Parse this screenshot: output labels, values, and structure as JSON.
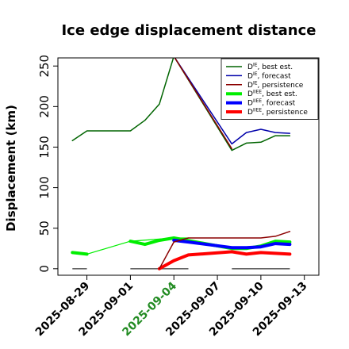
{
  "chart_data": {
    "type": "line",
    "title": "Ice edge displacement distance",
    "xlabel": "",
    "ylabel": "Displacement (km)",
    "ylim": [
      -8,
      260
    ],
    "xlim": [
      "2025-08-27",
      "2025-09-14"
    ],
    "x_ticks": [
      "2025-08-29",
      "2025-09-01",
      "2025-09-04",
      "2025-09-07",
      "2025-09-10",
      "2025-09-13"
    ],
    "highlight_tick": "2025-09-04",
    "y_ticks": [
      0,
      50,
      100,
      150,
      200,
      250
    ],
    "grid": false,
    "legend_position": "top-right",
    "series": [
      {
        "name": "D^IE, best est.",
        "name_base": "D",
        "name_sup": "IE",
        "name_suffix": ", best est.",
        "color": "#006400",
        "width": 1.5,
        "points": [
          [
            "2025-08-28",
            158
          ],
          [
            "2025-08-29",
            170
          ],
          [
            "2025-09-01",
            170
          ],
          [
            "2025-09-02",
            183
          ],
          [
            "2025-09-03",
            203
          ],
          [
            "2025-09-04",
            262
          ],
          [
            "2025-09-08",
            146
          ],
          [
            "2025-09-09",
            155
          ],
          [
            "2025-09-10",
            156
          ],
          [
            "2025-09-11",
            164
          ],
          [
            "2025-09-12",
            164
          ]
        ]
      },
      {
        "name": "D^IE, forecast",
        "name_base": "D",
        "name_sup": "IE",
        "name_suffix": ", forecast",
        "color": "#0000aa",
        "width": 1.5,
        "points": [
          [
            "2025-09-04",
            262
          ],
          [
            "2025-09-08",
            154
          ],
          [
            "2025-09-09",
            168
          ],
          [
            "2025-09-10",
            172
          ],
          [
            "2025-09-11",
            168
          ],
          [
            "2025-09-12",
            167
          ]
        ]
      },
      {
        "name": "D^IE, persistence",
        "name_base": "D",
        "name_sup": "IE",
        "name_suffix": ", persistence",
        "color": "#8b0000",
        "width": 1.5,
        "points": [
          [
            "2025-09-04",
            262
          ],
          [
            "2025-09-08",
            148
          ]
        ]
      },
      {
        "name": "D^IIEE, best est.",
        "name_base": "D",
        "name_sup": "IIEE",
        "name_suffix": ", best est.",
        "color": "#00ee00",
        "width": 4,
        "points": [
          [
            "2025-08-28",
            20
          ],
          [
            "2025-08-29",
            18
          ]
        ]
      },
      {
        "name": "D^IIEE, best est. (thin)",
        "color": "#00ee00",
        "width": 1.2,
        "legend": false,
        "points": [
          [
            "2025-08-29",
            18
          ],
          [
            "2025-09-01",
            34
          ],
          [
            "2025-09-04",
            38
          ],
          [
            "2025-09-05",
            38
          ]
        ]
      },
      {
        "name": "D^IIEE, best est. (tail)",
        "color": "#00ee00",
        "width": 4,
        "legend": false,
        "points": [
          [
            "2025-09-01",
            34
          ],
          [
            "2025-09-02",
            30
          ],
          [
            "2025-09-03",
            35
          ],
          [
            "2025-09-04",
            38
          ],
          [
            "2025-09-08",
            25
          ],
          [
            "2025-09-09",
            25
          ],
          [
            "2025-09-10",
            28
          ],
          [
            "2025-09-11",
            34
          ],
          [
            "2025-09-12",
            33
          ]
        ]
      },
      {
        "name": "D^IIEE, forecast",
        "name_base": "D",
        "name_sup": "IIEE",
        "name_suffix": ", forecast",
        "color": "#0000ff",
        "width": 4,
        "points": [
          [
            "2025-09-04",
            35
          ],
          [
            "2025-09-05",
            33
          ],
          [
            "2025-09-08",
            26
          ],
          [
            "2025-09-09",
            26
          ],
          [
            "2025-09-10",
            27
          ],
          [
            "2025-09-11",
            31
          ],
          [
            "2025-09-12",
            30
          ]
        ]
      },
      {
        "name": "D^IIEE, persistence",
        "name_base": "D",
        "name_sup": "IIEE",
        "name_suffix": ", persistence",
        "color": "#ff0000",
        "width": 4,
        "points": [
          [
            "2025-09-03",
            0
          ],
          [
            "2025-09-04",
            10
          ],
          [
            "2025-09-05",
            17
          ],
          [
            "2025-09-08",
            21
          ],
          [
            "2025-09-09",
            18
          ],
          [
            "2025-09-10",
            20
          ],
          [
            "2025-09-11",
            19
          ],
          [
            "2025-09-12",
            18
          ]
        ]
      },
      {
        "name": "D^IE, persistence (low)",
        "color": "#8b0000",
        "width": 1.5,
        "legend": false,
        "points": [
          [
            "2025-09-03",
            0
          ],
          [
            "2025-09-04",
            33
          ],
          [
            "2025-09-05",
            38
          ],
          [
            "2025-09-08",
            38
          ],
          [
            "2025-09-10",
            38
          ],
          [
            "2025-09-11",
            40
          ],
          [
            "2025-09-12",
            46
          ]
        ]
      }
    ],
    "zero_markers": [
      [
        "2025-08-28",
        "2025-08-29"
      ],
      [
        "2025-09-01",
        "2025-09-05"
      ],
      [
        "2025-09-08",
        "2025-09-12"
      ]
    ],
    "zero_marker_color": "#666666"
  }
}
